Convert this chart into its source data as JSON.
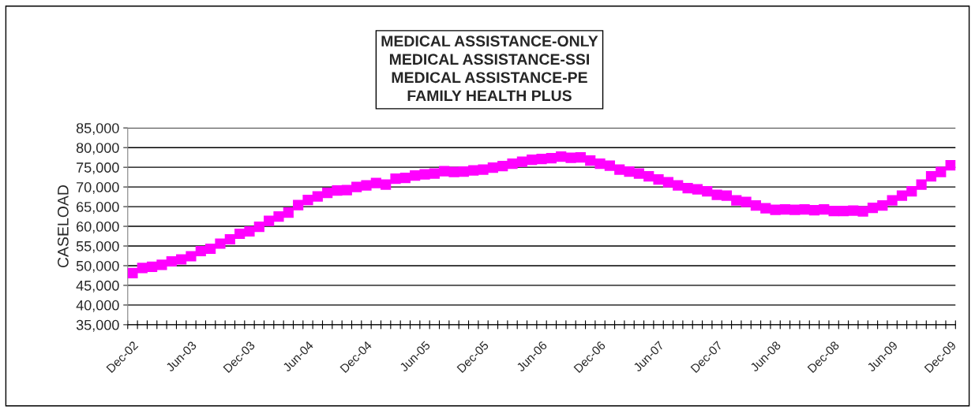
{
  "chart_data": {
    "type": "scatter",
    "title": "MEDICAL ASSISTANCE-ONLY\nMEDICAL ASSISTANCE-SSI\nMEDICAL ASSISTANCE-PE\nFAMILY HEALTH PLUS",
    "ylabel": "CASELOAD",
    "categories": [
      "Dec-02",
      null,
      null,
      null,
      null,
      null,
      "Jun-03",
      null,
      null,
      null,
      null,
      null,
      "Dec-03",
      null,
      null,
      null,
      null,
      null,
      "Jun-04",
      null,
      null,
      null,
      null,
      null,
      "Dec-04",
      null,
      null,
      null,
      null,
      null,
      "Jun-05",
      null,
      null,
      null,
      null,
      null,
      "Dec-05",
      null,
      null,
      null,
      null,
      null,
      "Jun-06",
      null,
      null,
      null,
      null,
      null,
      "Dec-06",
      null,
      null,
      null,
      null,
      null,
      "Jun-07",
      null,
      null,
      null,
      null,
      null,
      "Dec-07",
      null,
      null,
      null,
      null,
      null,
      "Jun-08",
      null,
      null,
      null,
      null,
      null,
      "Dec-08",
      null,
      null,
      null,
      null,
      null,
      "Jun-09",
      null,
      null,
      null,
      null,
      null,
      "Dec-09"
    ],
    "series": [
      {
        "color": "#ff00ff",
        "values": [
          48100,
          49400,
          49700,
          50200,
          51100,
          51600,
          52400,
          53700,
          54300,
          55600,
          56700,
          58100,
          58700,
          59900,
          61400,
          62500,
          63500,
          65400,
          66700,
          67600,
          68500,
          69100,
          69200,
          70000,
          70400,
          71000,
          70600,
          72100,
          72300,
          72900,
          73200,
          73400,
          74000,
          73800,
          73900,
          74200,
          74400,
          74900,
          75300,
          75900,
          76400,
          76900,
          77100,
          77300,
          77700,
          77400,
          77500,
          76700,
          75900,
          75400,
          74400,
          73900,
          73400,
          72700,
          71900,
          71200,
          70400,
          69700,
          69400,
          68900,
          68000,
          67800,
          66600,
          66200,
          65300,
          64600,
          64200,
          64300,
          64200,
          64300,
          64100,
          64300,
          63900,
          63900,
          64000,
          63800,
          64700,
          65300,
          66600,
          67800,
          68900,
          70600,
          72700,
          73800,
          75500
        ]
      }
    ],
    "marker": "square",
    "ylim": [
      35000,
      85000
    ],
    "yticks": [
      {
        "value": 35000,
        "label": "35,000"
      },
      {
        "value": 40000,
        "label": "40,000"
      },
      {
        "value": 45000,
        "label": "45,000"
      },
      {
        "value": 50000,
        "label": "50,000"
      },
      {
        "value": 55000,
        "label": "55,000"
      },
      {
        "value": 60000,
        "label": "60,000"
      },
      {
        "value": 65000,
        "label": "65,000"
      },
      {
        "value": 70000,
        "label": "70,000"
      },
      {
        "value": 75000,
        "label": "75,000"
      },
      {
        "value": 80000,
        "label": "80,000"
      },
      {
        "value": 85000,
        "label": "85,000"
      }
    ],
    "grid": "y",
    "legend": false
  }
}
